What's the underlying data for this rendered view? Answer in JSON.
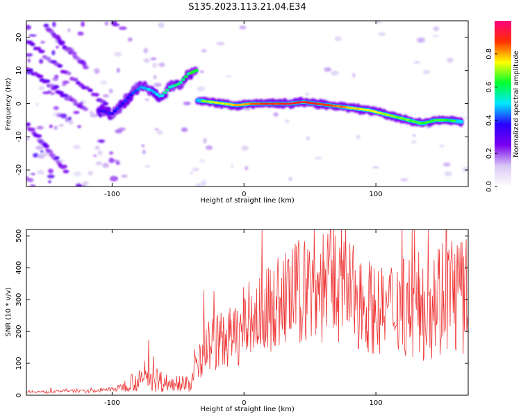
{
  "figure": {
    "title": "S135.2023.113.21.04.E34"
  },
  "chart_data": [
    {
      "type": "heatmap",
      "xlabel": "Height of straight line (km)",
      "ylabel": "Frequency (Hz)",
      "xlim": [
        -165,
        170
      ],
      "ylim": [
        -25,
        25
      ],
      "x_ticks": [
        -100,
        0,
        100
      ],
      "y_ticks": [
        -20,
        -10,
        0,
        10,
        20
      ],
      "grid": false,
      "colorbar": {
        "label": "Normalized spectral amplitude",
        "range": [
          0,
          1
        ],
        "ticks": [
          "0.0",
          "0.2",
          "0.4",
          "0.6",
          "0.8"
        ],
        "colormap": [
          "#ffffff",
          "#d8c8f4",
          "#7a00f0",
          "#2a00ff",
          "#00e8ff",
          "#00ff30",
          "#ffff00",
          "#ff3000",
          "#ff0080"
        ]
      },
      "main_ridge": {
        "x": [
          -35,
          -25,
          -15,
          -5,
          5,
          15,
          25,
          35,
          45,
          55,
          65,
          75,
          85,
          95,
          105,
          115,
          125,
          135,
          145,
          155,
          165
        ],
        "y": [
          1,
          0.5,
          0,
          -0.5,
          0,
          0,
          0,
          0,
          0.5,
          0,
          -0.5,
          -1,
          -1.5,
          -2,
          -3,
          -4,
          -5,
          -6,
          -5,
          -5,
          -5.5
        ]
      },
      "rising_ridge": {
        "x": [
          -110,
          -100,
          -92,
          -85,
          -78,
          -70,
          -63,
          -56,
          -49,
          -42,
          -36
        ],
        "y": [
          -2,
          -3,
          0,
          3,
          5,
          4,
          2,
          5,
          6,
          9,
          10
        ]
      },
      "falling_tracks": [
        {
          "x": [
            -165,
            -120
          ],
          "y": [
            11,
            -2
          ]
        },
        {
          "x": [
            -165,
            -105
          ],
          "y": [
            19,
            0
          ]
        },
        {
          "x": [
            -150,
            -120
          ],
          "y": [
            23,
            11
          ]
        },
        {
          "x": [
            -165,
            -135
          ],
          "y": [
            -6,
            -20
          ]
        }
      ]
    },
    {
      "type": "line",
      "xlabel": "Height of straight line (km)",
      "ylabel": "SNR (10 * v/v)",
      "xlim": [
        -165,
        170
      ],
      "ylim": [
        0,
        520
      ],
      "x_ticks": [
        -100,
        0,
        100
      ],
      "y_ticks": [
        0,
        100,
        200,
        300,
        400,
        500
      ],
      "grid": false,
      "color": "#ee3333",
      "series": [
        {
          "x": [
            -165,
            -150,
            -135,
            -120,
            -105,
            -95,
            -90,
            -85,
            -80,
            -75,
            -70,
            -65,
            -60,
            -55,
            -50,
            -45,
            -40,
            -35,
            -30,
            -25,
            -20,
            -15,
            -10,
            -5,
            0,
            5,
            10,
            15,
            20,
            25,
            30,
            35,
            40,
            45,
            50,
            55,
            60,
            65,
            70,
            75,
            80,
            85,
            90,
            95,
            100,
            105,
            110,
            115,
            120,
            125,
            130,
            135,
            140,
            145,
            150,
            155,
            160,
            165,
            170
          ],
          "y": [
            12,
            10,
            14,
            12,
            16,
            22,
            30,
            45,
            40,
            55,
            60,
            48,
            40,
            35,
            45,
            38,
            30,
            120,
            150,
            160,
            170,
            175,
            180,
            190,
            200,
            230,
            240,
            260,
            270,
            290,
            300,
            310,
            320,
            330,
            340,
            330,
            350,
            360,
            340,
            330,
            320,
            300,
            290,
            280,
            270,
            260,
            270,
            290,
            300,
            280,
            270,
            280,
            300,
            320,
            310,
            330,
            320,
            310,
            300
          ],
          "amplitude": [
            4,
            4,
            4,
            5,
            6,
            10,
            20,
            30,
            35,
            40,
            50,
            40,
            30,
            25,
            30,
            25,
            20,
            80,
            90,
            90,
            90,
            90,
            100,
            100,
            100,
            110,
            120,
            130,
            140,
            150,
            150,
            160,
            170,
            170,
            180,
            180,
            190,
            190,
            180,
            170,
            170,
            160,
            150,
            150,
            140,
            140,
            150,
            160,
            170,
            170,
            170,
            180,
            190,
            200,
            200,
            200,
            200,
            200,
            190
          ]
        }
      ]
    }
  ]
}
